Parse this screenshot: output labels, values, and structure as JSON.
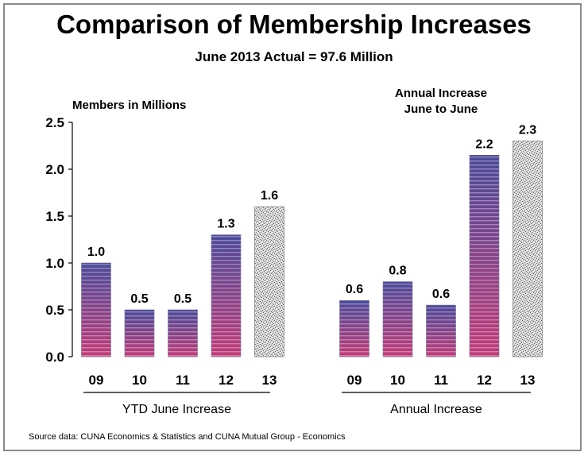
{
  "title": "Comparison of Membership Increases",
  "subtitle": "June 2013 Actual = 97.6 Million",
  "ylabel": "Members in Millions",
  "right_label_line1": "Annual Increase",
  "right_label_line2": "June to June",
  "source": "Source data: CUNA Economics & Statistics and CUNA Mutual Group - Economics",
  "colors": {
    "bar_top": "#4b4a9a",
    "bar_bottom": "#c23c78",
    "bar_stripe": "#ffffff",
    "highlight_fill": "#d6d6d6",
    "axis": "#000000"
  },
  "chart_data": {
    "type": "bar",
    "ylim": [
      0,
      2.5
    ],
    "yticks": [
      "0.0",
      "0.5",
      "1.0",
      "1.5",
      "2.0",
      "2.5"
    ],
    "groups": [
      {
        "label": "YTD June Increase",
        "categories": [
          "09",
          "10",
          "11",
          "12",
          "13"
        ],
        "values": [
          1.0,
          0.5,
          0.5,
          1.3,
          1.6
        ],
        "value_labels": [
          "1.0",
          "0.5",
          "0.5",
          "1.3",
          "1.6"
        ],
        "highlight": [
          false,
          false,
          false,
          false,
          true
        ]
      },
      {
        "label": "Annual Increase",
        "categories": [
          "09",
          "10",
          "11",
          "12",
          "13"
        ],
        "values": [
          0.6,
          0.8,
          0.55,
          2.15,
          2.3
        ],
        "value_labels": [
          "0.6",
          "0.8",
          "0.6",
          "2.2",
          "2.3"
        ],
        "highlight": [
          false,
          false,
          false,
          false,
          true
        ]
      }
    ]
  }
}
